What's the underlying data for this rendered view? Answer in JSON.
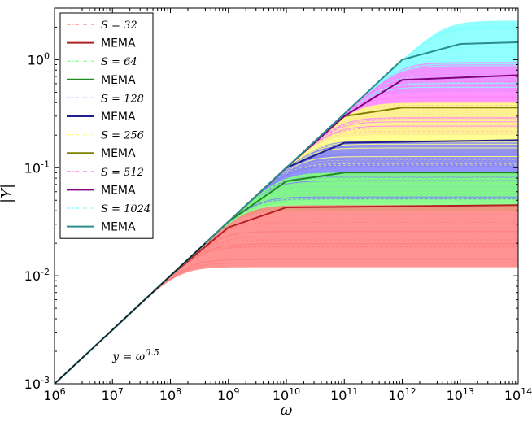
{
  "chart_data": {
    "type": "line",
    "xlabel": "ω",
    "ylabel": "|Y|",
    "xscale": "log",
    "yscale": "log",
    "xlim": [
      1000000,
      100000000000000
    ],
    "ylim": [
      0.001,
      3
    ],
    "x_ticks": [
      {
        "value": 1000000,
        "base": "10",
        "exp": "6"
      },
      {
        "value": 10000000,
        "base": "10",
        "exp": "7"
      },
      {
        "value": 100000000,
        "base": "10",
        "exp": "8"
      },
      {
        "value": 1000000000,
        "base": "10",
        "exp": "9"
      },
      {
        "value": 10000000000,
        "base": "10",
        "exp": "10"
      },
      {
        "value": 100000000000,
        "base": "10",
        "exp": "11"
      },
      {
        "value": 1000000000000,
        "base": "10",
        "exp": "12"
      },
      {
        "value": 10000000000000,
        "base": "10",
        "exp": "13"
      },
      {
        "value": 100000000000000,
        "base": "10",
        "exp": "14"
      }
    ],
    "y_ticks": [
      {
        "value": 0.001,
        "base": "10",
        "exp": "-3"
      },
      {
        "value": 0.01,
        "base": "10",
        "exp": "-2"
      },
      {
        "value": 0.1,
        "base": "10",
        "exp": "-1"
      },
      {
        "value": 1,
        "base": "10",
        "exp": "0"
      }
    ],
    "legend_position": "top-left",
    "grid": false,
    "annotation": {
      "text": "y = ω^0.5",
      "x": 10000000,
      "y": 0.0019
    },
    "reference_line": {
      "name": "y = ω^0.5",
      "x": [
        1000000,
        400000000
      ],
      "y": [
        0.001,
        0.02
      ]
    },
    "series": [
      {
        "name": "S = 32",
        "kind": "samples",
        "color": "#ff7f7f",
        "dash": "3,3",
        "saturation_min": 0.012,
        "saturation_max": 0.045,
        "knee_omega": 150000000
      },
      {
        "name": "MEMA",
        "kind": "mean",
        "color": "#b22222",
        "x": [
          1000000,
          10000000,
          100000000,
          1000000000,
          10000000000,
          100000000000000
        ],
        "y": [
          0.001,
          0.00316,
          0.01,
          0.028,
          0.043,
          0.045
        ]
      },
      {
        "name": "S = 64",
        "kind": "samples",
        "color": "#80ff80",
        "dash": "3,3",
        "saturation_min": 0.04,
        "saturation_max": 0.09,
        "knee_omega": 400000000
      },
      {
        "name": "MEMA",
        "kind": "mean",
        "color": "#228b22",
        "x": [
          1000000,
          10000000,
          100000000,
          1000000000,
          10000000000,
          100000000000,
          100000000000000
        ],
        "y": [
          0.001,
          0.00316,
          0.01,
          0.0316,
          0.075,
          0.09,
          0.09
        ]
      },
      {
        "name": "S = 128",
        "kind": "samples",
        "color": "#8080ff",
        "dash": "3,3",
        "saturation_min": 0.05,
        "saturation_max": 0.18,
        "knee_omega": 1500000000
      },
      {
        "name": "MEMA",
        "kind": "mean",
        "color": "#1f1f8c",
        "x": [
          1000000,
          10000000,
          100000000,
          1000000000,
          10000000000,
          100000000000,
          100000000000000
        ],
        "y": [
          0.001,
          0.00316,
          0.01,
          0.0316,
          0.1,
          0.17,
          0.18
        ]
      },
      {
        "name": "S = 256",
        "kind": "samples",
        "color": "#ffff80",
        "dash": "3,3",
        "saturation_min": 0.1,
        "saturation_max": 0.4,
        "knee_omega": 6000000000
      },
      {
        "name": "MEMA",
        "kind": "mean",
        "color": "#808000",
        "x": [
          1000000,
          10000000,
          100000000,
          1000000000,
          10000000000,
          100000000000,
          1000000000000,
          100000000000000
        ],
        "y": [
          0.001,
          0.00316,
          0.01,
          0.0316,
          0.1,
          0.3,
          0.36,
          0.36
        ]
      },
      {
        "name": "S = 512",
        "kind": "samples",
        "color": "#ff80ff",
        "dash": "3,3",
        "saturation_min": 0.2,
        "saturation_max": 0.95,
        "knee_omega": 30000000000
      },
      {
        "name": "MEMA",
        "kind": "mean",
        "color": "#800080",
        "x": [
          1000000,
          10000000,
          100000000,
          1000000000,
          10000000000,
          100000000000,
          1000000000000,
          100000000000000
        ],
        "y": [
          0.001,
          0.00316,
          0.01,
          0.0316,
          0.1,
          0.3,
          0.65,
          0.72
        ]
      },
      {
        "name": "S = 1024",
        "kind": "samples",
        "color": "#7fffff",
        "dash": "3,3",
        "saturation_min": 0.5,
        "saturation_max": 2.3,
        "knee_omega": 200000000000
      },
      {
        "name": "MEMA",
        "kind": "mean",
        "color": "#2a8c8c",
        "x": [
          1000000,
          10000000,
          100000000,
          1000000000,
          10000000000,
          100000000000,
          1000000000000,
          10000000000000,
          100000000000000
        ],
        "y": [
          0.001,
          0.00316,
          0.01,
          0.0316,
          0.1,
          0.316,
          1.0,
          1.4,
          1.45
        ]
      }
    ],
    "legend": [
      {
        "label_prefix": "S",
        "label_value": "32",
        "color": "#ff7f7f",
        "style": "dashdot"
      },
      {
        "label": "MEMA",
        "color": "#b22222",
        "style": "solid"
      },
      {
        "label_prefix": "S",
        "label_value": "64",
        "color": "#80ff80",
        "style": "dashdot"
      },
      {
        "label": "MEMA",
        "color": "#228b22",
        "style": "solid"
      },
      {
        "label_prefix": "S",
        "label_value": "128",
        "color": "#8080ff",
        "style": "dashdot"
      },
      {
        "label": "MEMA",
        "color": "#1f1f8c",
        "style": "solid"
      },
      {
        "label_prefix": "S",
        "label_value": "256",
        "color": "#ffff80",
        "style": "dashdot"
      },
      {
        "label": "MEMA",
        "color": "#808000",
        "style": "solid"
      },
      {
        "label_prefix": "S",
        "label_value": "512",
        "color": "#ff80ff",
        "style": "dashdot"
      },
      {
        "label": "MEMA",
        "color": "#800080",
        "style": "solid"
      },
      {
        "label_prefix": "S",
        "label_value": "1024",
        "color": "#7fffff",
        "style": "dashdot"
      },
      {
        "label": "MEMA",
        "color": "#2a8c8c",
        "style": "solid"
      }
    ]
  }
}
